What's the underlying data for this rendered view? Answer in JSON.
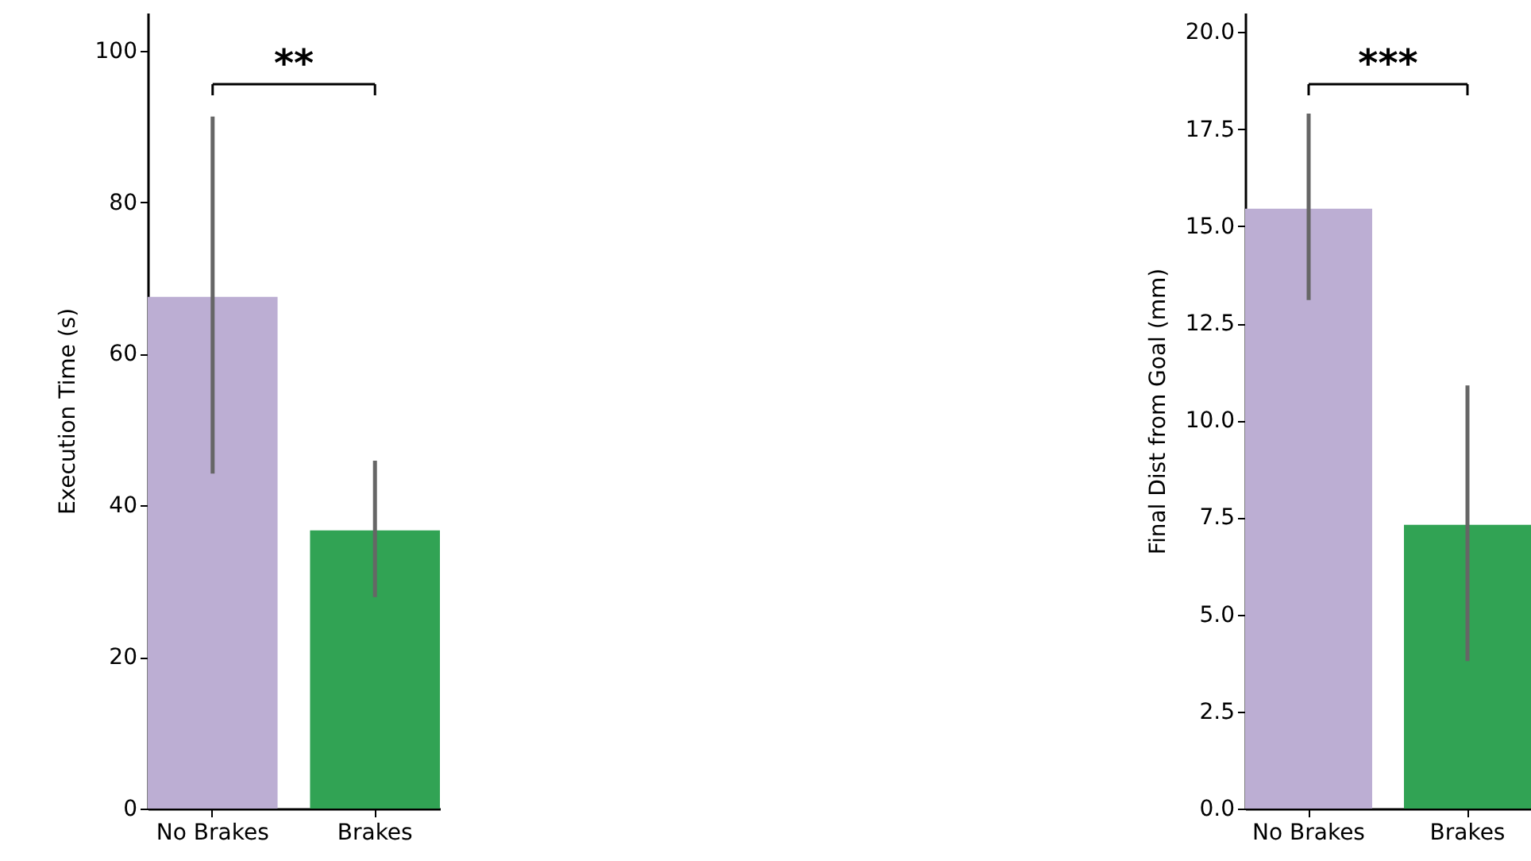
{
  "chart_data": [
    {
      "type": "bar",
      "categories": [
        "No Brakes",
        "Brakes"
      ],
      "values": [
        67.5,
        36.7
      ],
      "colors": [
        "#bcaed3",
        "#31a354"
      ],
      "errors": [
        [
          44.2,
          91.3
        ],
        [
          27.9,
          45.9
        ]
      ],
      "ylabel": "Execution Time (s)",
      "ylim": [
        0,
        105
      ],
      "yticks": [
        0,
        20,
        40,
        60,
        80,
        100
      ],
      "annotations": [
        "**"
      ]
    },
    {
      "type": "bar",
      "categories": [
        "No Brakes",
        "Brakes"
      ],
      "values": [
        15.45,
        7.31
      ],
      "colors": [
        "#bcaed3",
        "#31a354"
      ],
      "errors": [
        [
          13.1,
          17.9
        ],
        [
          3.8,
          10.9
        ]
      ],
      "ylabel": "Final Dist from Goal (mm)",
      "ylim": [
        0,
        20.5
      ],
      "yticks": [
        {
          "value": 0,
          "label": "0.0"
        },
        2.5,
        {
          "value": 5,
          "label": "5.0"
        },
        7.5,
        {
          "value": 10,
          "label": "10.0"
        },
        12.5,
        {
          "value": 15,
          "label": "15.0"
        },
        17.5,
        {
          "value": 20,
          "label": "20.0"
        }
      ],
      "annotations": [
        "***"
      ]
    }
  ]
}
